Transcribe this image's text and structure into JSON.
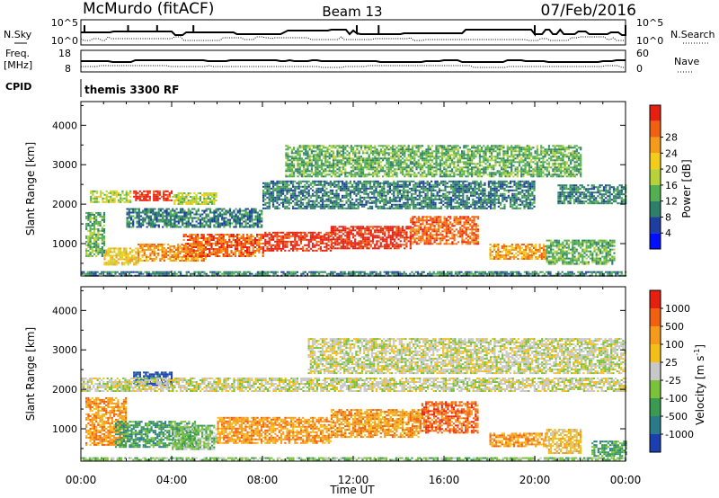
{
  "header": {
    "site": "McMurdo (fitACF)",
    "beam": "Beam 13",
    "date": "07/Feb/2016"
  },
  "nsky_panel": {
    "left_label": "N.Sky",
    "right_label": "N.Search",
    "left_ticks": [
      "10^5",
      "10^0"
    ],
    "right_ticks": [
      "10^5",
      "10^0"
    ]
  },
  "freq_panel": {
    "left_label": "Freq.",
    "left_unit": "[MHz]",
    "right_label": "Nave",
    "left_ticks": [
      "18",
      "8"
    ],
    "right_ticks": [
      "60",
      "0"
    ]
  },
  "cpid": {
    "label": "CPID",
    "value": "themis 3300 RF"
  },
  "chart_data": [
    {
      "type": "heatmap",
      "name": "power",
      "ylabel": "Slant Range [km]",
      "ylim": [
        180,
        4600
      ],
      "yticks": [
        "1000",
        "2000",
        "3000",
        "4000"
      ],
      "colorbar_label": "Power [dB]",
      "colorbar_ticks": [
        "4",
        "8",
        "12",
        "16",
        "20",
        "24",
        "28"
      ],
      "colorbar_colors": [
        "#0010ff",
        "#1e3fa0",
        "#2e7f6a",
        "#52b050",
        "#b8d23a",
        "#f4cc1a",
        "#f59a1a",
        "#f06010",
        "#e62010"
      ],
      "x_unit": "hours UT",
      "blobs": [
        {
          "x": [
            2.3,
            4.0
          ],
          "y": [
            2080,
            2350
          ],
          "level": 8
        },
        {
          "x": [
            0.4,
            2.2
          ],
          "y": [
            2050,
            2350
          ],
          "level": 4
        },
        {
          "x": [
            4.0,
            6.0
          ],
          "y": [
            2000,
            2300
          ],
          "level": 4
        },
        {
          "x": [
            1.0,
            2.5
          ],
          "y": [
            450,
            900
          ],
          "level": 5
        },
        {
          "x": [
            0.2,
            1.0
          ],
          "y": [
            700,
            1800
          ],
          "level": 3
        },
        {
          "x": [
            2.5,
            5.5
          ],
          "y": [
            550,
            1000
          ],
          "level": 6
        },
        {
          "x": [
            4.5,
            8.0
          ],
          "y": [
            700,
            1250
          ],
          "level": 7
        },
        {
          "x": [
            8.0,
            11.0
          ],
          "y": [
            800,
            1300
          ],
          "level": 8
        },
        {
          "x": [
            11.0,
            14.5
          ],
          "y": [
            900,
            1450
          ],
          "level": 8
        },
        {
          "x": [
            14.5,
            17.5
          ],
          "y": [
            1000,
            1700
          ],
          "level": 7
        },
        {
          "x": [
            18.0,
            20.5
          ],
          "y": [
            600,
            1000
          ],
          "level": 6
        },
        {
          "x": [
            20.5,
            23.5
          ],
          "y": [
            500,
            1100
          ],
          "level": 3
        },
        {
          "x": [
            2.0,
            8.0
          ],
          "y": [
            1400,
            1900
          ],
          "level": 2
        },
        {
          "x": [
            8.0,
            20.0
          ],
          "y": [
            1900,
            2600
          ],
          "level": 2
        },
        {
          "x": [
            9.0,
            22.0
          ],
          "y": [
            2700,
            3500
          ],
          "level": 3
        },
        {
          "x": [
            0.0,
            24.0
          ],
          "y": [
            200,
            300
          ],
          "level": 2
        },
        {
          "x": [
            21.0,
            24.0
          ],
          "y": [
            2000,
            2500
          ],
          "level": 2
        }
      ]
    },
    {
      "type": "heatmap",
      "name": "velocity",
      "xlabel": "Time UT",
      "ylabel": "Slant Range [km]",
      "ylim": [
        180,
        4600
      ],
      "yticks": [
        "1000",
        "2000",
        "3000",
        "4000"
      ],
      "xticks": [
        "00:00",
        "04:00",
        "08:00",
        "12:00",
        "16:00",
        "20:00",
        "00:00"
      ],
      "colorbar_label": "Velocity [m s",
      "colorbar_label_sup": "-1",
      "colorbar_label_end": "]",
      "colorbar_ticks": [
        "1000",
        "500",
        "100",
        "25",
        "-25",
        "-100",
        "-500",
        "-1000"
      ],
      "colorbar_colors": [
        "#1a3fb0",
        "#2a7a8a",
        "#3a9a50",
        "#7ac23a",
        "#c8c8c8",
        "#f4c018",
        "#f59a1a",
        "#f06010",
        "#e62010"
      ],
      "x_unit": "hours UT",
      "blobs": [
        {
          "x": [
            2.3,
            4.0
          ],
          "y": [
            2100,
            2450
          ],
          "level": 0
        },
        {
          "x": [
            0.2,
            2.0
          ],
          "y": [
            600,
            1800
          ],
          "level": 6
        },
        {
          "x": [
            1.5,
            5.0
          ],
          "y": [
            550,
            1200
          ],
          "level": 2
        },
        {
          "x": [
            4.0,
            6.0
          ],
          "y": [
            500,
            1100
          ],
          "level": 3
        },
        {
          "x": [
            6.0,
            11.0
          ],
          "y": [
            650,
            1300
          ],
          "level": 6
        },
        {
          "x": [
            11.0,
            15.0
          ],
          "y": [
            800,
            1500
          ],
          "level": 6
        },
        {
          "x": [
            15.0,
            17.5
          ],
          "y": [
            900,
            1700
          ],
          "level": 7
        },
        {
          "x": [
            18.0,
            20.5
          ],
          "y": [
            550,
            900
          ],
          "level": 6
        },
        {
          "x": [
            20.5,
            22.0
          ],
          "y": [
            400,
            1000
          ],
          "level": 5
        },
        {
          "x": [
            22.5,
            24.0
          ],
          "y": [
            300,
            700
          ],
          "level": 2
        },
        {
          "x": [
            0.0,
            24.0
          ],
          "y": [
            1950,
            2300
          ],
          "level": 4
        },
        {
          "x": [
            10.0,
            24.0
          ],
          "y": [
            2400,
            3300
          ],
          "level": 4
        },
        {
          "x": [
            0.0,
            24.0
          ],
          "y": [
            200,
            280
          ],
          "level": 3
        }
      ]
    }
  ]
}
